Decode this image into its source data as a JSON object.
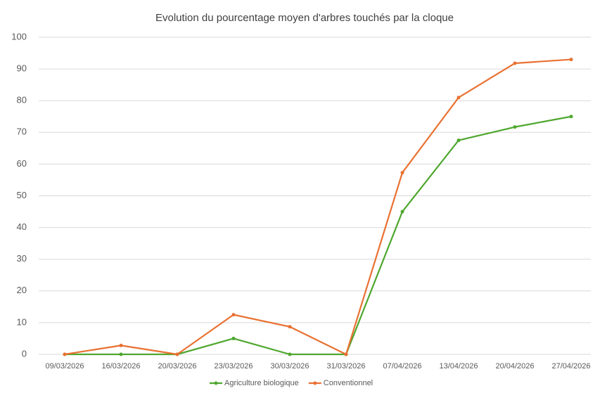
{
  "chart_data": {
    "type": "line",
    "title": "Evolution du pourcentage moyen d'arbres touchés par la cloque",
    "categories": [
      "09/03/2026",
      "16/03/2026",
      "20/03/2026",
      "23/03/2026",
      "30/03/2026",
      "31/03/2026",
      "07/04/2026",
      "13/04/2026",
      "20/04/2026",
      "27/04/2026"
    ],
    "series": [
      {
        "name": "Agriculture biologique",
        "color": "#4ea72e",
        "values": [
          0,
          0,
          0,
          5,
          0,
          0,
          45,
          67.5,
          71.7,
          75
        ]
      },
      {
        "name": "Conventionnel",
        "color": "#e97132",
        "values": [
          0,
          2.8,
          0,
          12.5,
          8.7,
          0,
          57.3,
          81,
          91.8,
          93
        ]
      }
    ],
    "ylim": [
      0,
      100
    ],
    "yticks": [
      0,
      10,
      20,
      30,
      40,
      50,
      60,
      70,
      80,
      90,
      100
    ],
    "grid": true,
    "legend": "bottom"
  }
}
